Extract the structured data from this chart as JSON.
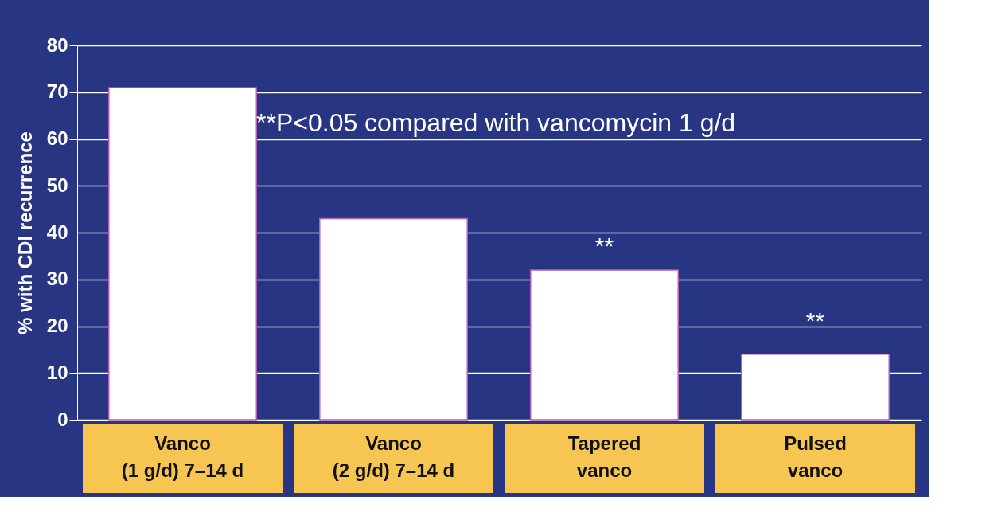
{
  "chart_data": {
    "type": "bar",
    "ylabel": "% with CDI recurrence",
    "categories": [
      "Vanco\n(1 g/d)    7–14 d",
      "Vanco\n(2 g/d)    7–14 d",
      "Tapered\nvanco",
      "Pulsed\nvanco"
    ],
    "values": [
      71,
      43,
      32,
      14
    ],
    "color": "#ffffff",
    "ylim": [
      0,
      80
    ],
    "yticks": [
      0,
      10,
      20,
      30,
      40,
      50,
      60,
      70,
      80
    ],
    "grid": "y",
    "annotations": [
      "**P<0.05 compared with vancomycin 1 g/d",
      "**",
      "**"
    ]
  }
}
